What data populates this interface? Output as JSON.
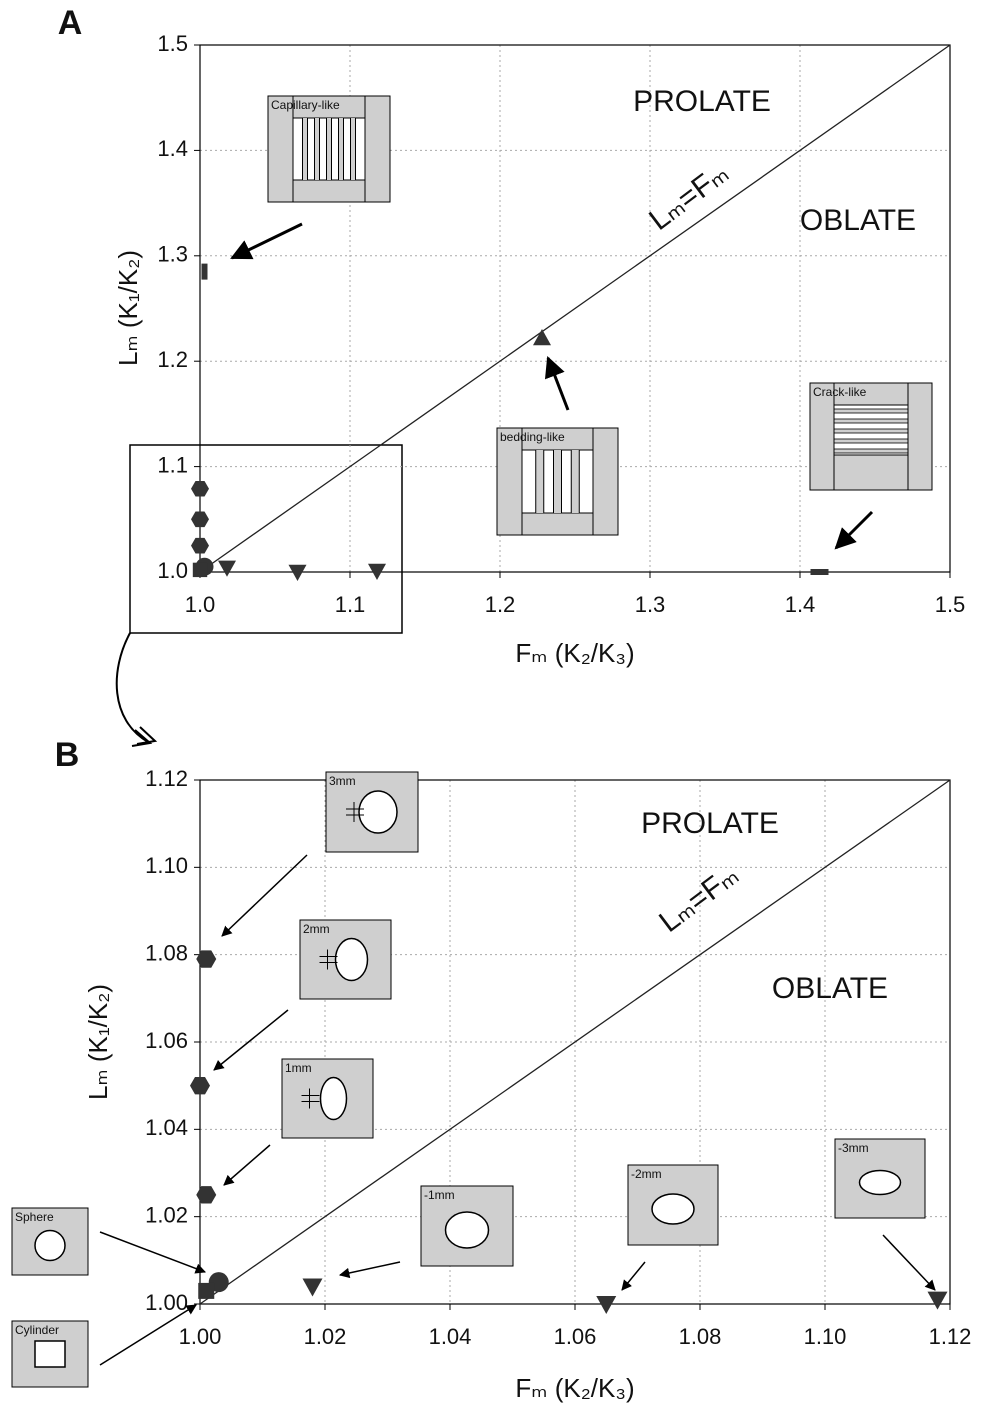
{
  "chart_data": [
    {
      "type": "scatter",
      "panel_label": "A",
      "x_label": "Fₘ (K₂/K₃)",
      "y_label": "Lₘ (K₁/K₂)",
      "annotations": [
        "PROLATE",
        "OBLATE",
        "Lₘ=Fₘ"
      ],
      "insets": [
        "Capillary-like",
        "bedding-like",
        "Crack-like"
      ],
      "xlim": [
        1.0,
        1.5
      ],
      "ylim": [
        1.0,
        1.5
      ],
      "xticks": [
        {
          "value": 1.0,
          "label": "1.0"
        },
        1.1,
        1.2,
        1.3,
        1.4,
        1.5
      ],
      "yticks": [
        {
          "value": 1.0,
          "label": "1.0"
        },
        1.1,
        1.2,
        1.3,
        1.4,
        1.5
      ],
      "grid": true,
      "identity_line": true,
      "series": [
        {
          "marker": "hexagon",
          "color": "#333333",
          "x": [
            1.0,
            1.0,
            1.0
          ],
          "values": [
            1.079,
            1.05,
            1.025
          ]
        },
        {
          "marker": "circle",
          "color": "#333333",
          "x": [
            1.003
          ],
          "values": [
            1.005
          ]
        },
        {
          "marker": "square",
          "color": "#333333",
          "x": [
            1.0
          ],
          "values": [
            1.002
          ]
        },
        {
          "marker": "triangle-down",
          "color": "#333333",
          "x": [
            1.018,
            1.065,
            1.118
          ],
          "values": [
            1.004,
            1.0,
            1.001
          ]
        },
        {
          "marker": "bar-vertical",
          "color": "#333333",
          "x": [
            1.003
          ],
          "values": [
            1.285
          ]
        },
        {
          "marker": "triangle-up",
          "color": "#333333",
          "x": [
            1.228
          ],
          "values": [
            1.222
          ]
        },
        {
          "marker": "bar-horizontal",
          "color": "#333333",
          "x": [
            1.413
          ],
          "values": [
            1.0
          ]
        }
      ]
    },
    {
      "type": "scatter",
      "panel_label": "B",
      "x_label": "Fₘ (K₂/K₃)",
      "y_label": "Lₘ (K₁/K₂)",
      "annotations": [
        "PROLATE",
        "OBLATE",
        "Lₘ=Fₘ"
      ],
      "insets": [
        "3mm",
        "2mm",
        "1mm",
        "Sphere",
        "Cylinder",
        "-1mm",
        "-2mm",
        "-3mm"
      ],
      "xlim": [
        1.0,
        1.12
      ],
      "ylim": [
        1.0,
        1.12
      ],
      "xticks": [
        {
          "value": 1.0,
          "label": "1.00"
        },
        1.02,
        1.04,
        1.06,
        1.08,
        {
          "value": 1.1,
          "label": "1.10"
        },
        1.12
      ],
      "yticks": [
        {
          "value": 1.0,
          "label": "1.00"
        },
        1.02,
        1.04,
        1.06,
        1.08,
        {
          "value": 1.1,
          "label": "1.10"
        },
        1.12
      ],
      "grid": true,
      "identity_line": true,
      "series": [
        {
          "marker": "hexagon",
          "color": "#333333",
          "x": [
            1.001,
            1.0,
            1.001
          ],
          "values": [
            1.079,
            1.05,
            1.025
          ]
        },
        {
          "marker": "circle",
          "color": "#333333",
          "x": [
            1.003
          ],
          "values": [
            1.005
          ]
        },
        {
          "marker": "square",
          "color": "#333333",
          "x": [
            1.001
          ],
          "values": [
            1.003
          ]
        },
        {
          "marker": "triangle-down",
          "color": "#333333",
          "x": [
            1.018,
            1.065,
            1.118
          ],
          "values": [
            1.004,
            1.0,
            1.001
          ]
        }
      ]
    }
  ]
}
